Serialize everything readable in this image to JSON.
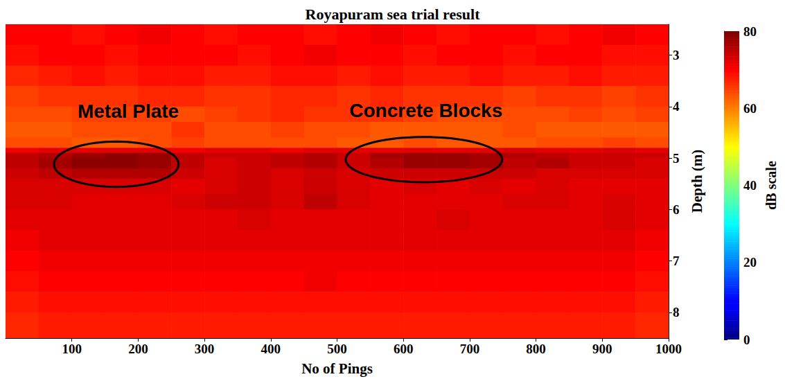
{
  "chart_data": {
    "type": "heatmap",
    "title": "Royapuram sea trial result",
    "x_label": "No of Pings",
    "y_label": "Depth (m)",
    "xlim": [
      0,
      1000
    ],
    "xticks": [
      100,
      200,
      300,
      400,
      500,
      600,
      700,
      800,
      900,
      1000
    ],
    "ylim": [
      2.4,
      8.5
    ],
    "yticks": [
      3,
      4,
      5,
      6,
      7,
      8
    ],
    "grid": false,
    "x_edges": [
      0,
      50,
      100,
      150,
      200,
      250,
      300,
      350,
      400,
      450,
      500,
      550,
      600,
      650,
      700,
      750,
      800,
      850,
      900,
      950,
      1000
    ],
    "y_edges": [
      2.4,
      2.8,
      3.2,
      3.6,
      4.0,
      4.3,
      4.6,
      4.8,
      4.9,
      5.0,
      5.2,
      5.4,
      5.7,
      6.0,
      6.4,
      6.8,
      7.2,
      7.6,
      8.0,
      8.5
    ],
    "cells": [
      [
        70,
        70,
        69,
        70,
        71,
        70,
        69,
        70,
        70,
        69,
        70,
        71,
        70,
        69,
        70,
        70,
        69,
        70,
        71,
        70
      ],
      [
        69,
        70,
        70,
        69,
        70,
        70,
        70,
        69,
        70,
        71,
        70,
        70,
        69,
        70,
        70,
        69,
        70,
        70,
        69,
        69
      ],
      [
        67,
        68,
        69,
        68,
        69,
        69,
        68,
        68,
        69,
        69,
        68,
        69,
        68,
        68,
        69,
        68,
        68,
        69,
        68,
        68
      ],
      [
        65,
        66,
        66,
        66,
        67,
        67,
        66,
        66,
        67,
        67,
        66,
        67,
        66,
        66,
        66,
        65,
        66,
        66,
        65,
        66
      ],
      [
        64,
        64,
        65,
        65,
        65,
        64,
        65,
        66,
        67,
        66,
        66,
        66,
        65,
        64,
        64,
        64,
        64,
        65,
        64,
        65
      ],
      [
        63,
        63,
        64,
        64,
        64,
        66,
        64,
        64,
        65,
        64,
        64,
        63,
        63,
        63,
        63,
        64,
        63,
        63,
        63,
        63
      ],
      [
        64,
        64,
        63,
        63,
        64,
        65,
        64,
        64,
        64,
        64,
        63,
        63,
        64,
        63,
        63,
        63,
        64,
        64,
        65,
        64
      ],
      [
        71,
        72,
        72,
        72,
        72,
        71,
        72,
        72,
        71,
        72,
        72,
        72,
        72,
        72,
        72,
        73,
        72,
        72,
        73,
        72
      ],
      [
        75,
        76,
        78,
        79,
        78,
        75,
        74,
        74,
        75,
        76,
        74,
        77,
        78,
        78,
        77,
        76,
        75,
        74,
        74,
        74
      ],
      [
        75,
        77,
        79,
        79,
        78,
        75,
        73,
        74,
        75,
        76,
        74,
        76,
        78,
        78,
        77,
        75,
        76,
        74,
        74,
        73
      ],
      [
        74,
        75,
        76,
        76,
        76,
        74,
        73,
        74,
        73,
        74,
        73,
        74,
        74,
        74,
        74,
        74,
        73,
        73,
        73,
        73
      ],
      [
        73,
        73,
        73,
        73,
        73,
        72,
        73,
        74,
        73,
        74,
        73,
        72,
        73,
        72,
        73,
        72,
        73,
        72,
        72,
        72
      ],
      [
        73,
        73,
        72,
        72,
        72,
        73,
        74,
        74,
        73,
        75,
        73,
        72,
        72,
        72,
        72,
        73,
        73,
        72,
        73,
        72
      ],
      [
        72,
        72,
        72,
        72,
        72,
        72,
        72,
        73,
        72,
        72,
        72,
        72,
        72,
        73,
        72,
        72,
        72,
        72,
        73,
        72
      ],
      [
        71,
        72,
        72,
        72,
        72,
        72,
        72,
        72,
        72,
        72,
        72,
        72,
        72,
        72,
        72,
        72,
        72,
        72,
        72,
        71
      ],
      [
        70,
        71,
        71,
        71,
        71,
        71,
        71,
        71,
        71,
        71,
        71,
        71,
        71,
        71,
        71,
        71,
        71,
        71,
        71,
        70
      ],
      [
        69,
        70,
        70,
        70,
        70,
        70,
        70,
        70,
        70,
        71,
        70,
        70,
        70,
        70,
        70,
        70,
        70,
        70,
        70,
        69
      ],
      [
        68,
        69,
        69,
        69,
        69,
        69,
        69,
        69,
        69,
        69,
        69,
        69,
        69,
        69,
        69,
        69,
        69,
        69,
        69,
        68
      ],
      [
        67,
        68,
        68,
        68,
        68,
        68,
        68,
        68,
        68,
        68,
        68,
        68,
        68,
        68,
        68,
        68,
        68,
        68,
        68,
        67
      ]
    ],
    "colorbar": {
      "label": "dB scale",
      "range": [
        0,
        80
      ],
      "ticks": [
        0,
        20,
        40,
        60,
        80
      ]
    },
    "annotations": [
      {
        "text": "Metal Plate",
        "x": 185,
        "y": 4.09,
        "ellipse": {
          "x": 167,
          "y": 5.12,
          "rx": 94,
          "ry": 0.44
        }
      },
      {
        "text": "Concrete Blocks",
        "x": 634,
        "y": 4.07,
        "ellipse": {
          "x": 631,
          "y": 5.03,
          "rx": 118,
          "ry": 0.44
        }
      }
    ]
  }
}
